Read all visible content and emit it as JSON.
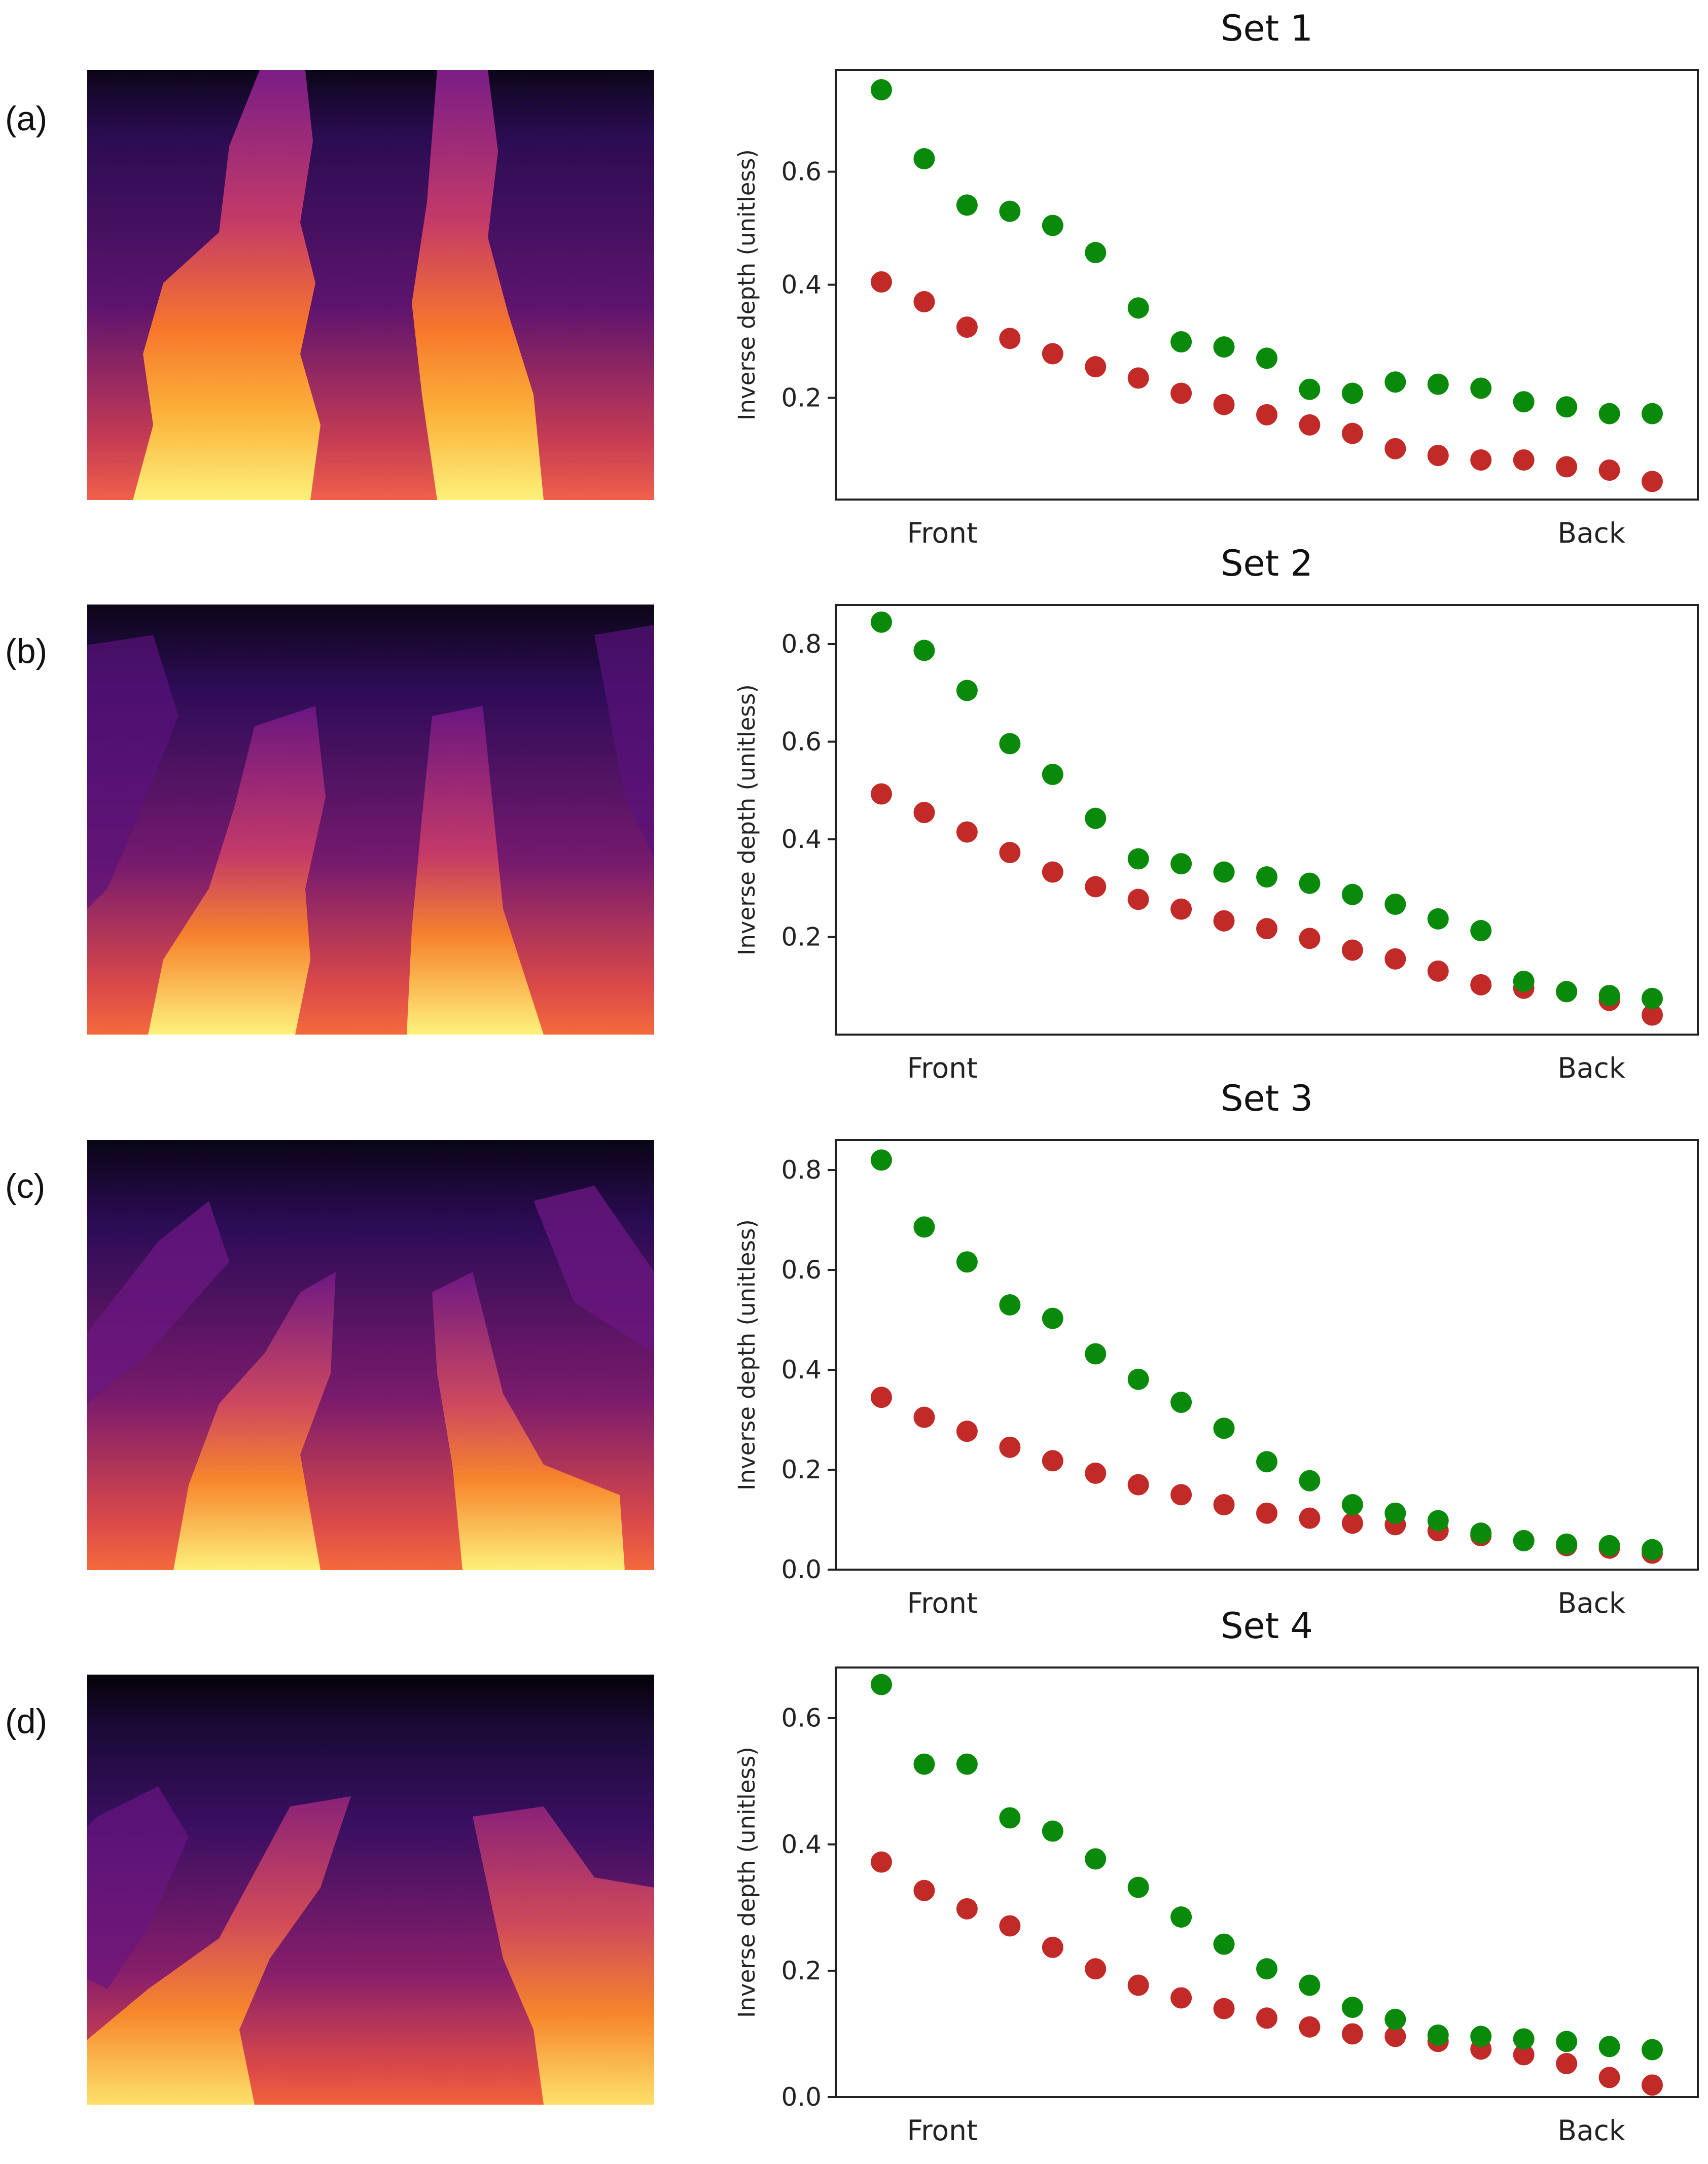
{
  "panel_labels": [
    "(a)",
    "(b)",
    "(c)",
    "(d)"
  ],
  "colors": {
    "green_series": "#0a8a0a",
    "red_series": "#c22a28"
  },
  "chart_data": [
    {
      "type": "scatter",
      "title": "Set 1",
      "ylabel": "Inverse depth (unitless)",
      "xlabel": "",
      "x_tick_labels": [
        "Front",
        "Back"
      ],
      "ylim": [
        0.02,
        0.78
      ],
      "yticks": [
        "0.2",
        "0.4",
        "0.6"
      ],
      "ytick_values": [
        0.2,
        0.4,
        0.6
      ],
      "x": [
        1,
        2,
        3,
        4,
        5,
        6,
        7,
        8,
        9,
        10,
        11,
        12,
        13,
        14,
        15,
        16,
        17,
        18,
        19
      ],
      "series": [
        {
          "name": "green",
          "values": [
            0.745,
            0.623,
            0.541,
            0.53,
            0.505,
            0.457,
            0.359,
            0.299,
            0.29,
            0.27,
            0.215,
            0.208,
            0.228,
            0.224,
            0.217,
            0.193,
            0.184,
            0.172,
            0.172
          ]
        },
        {
          "name": "red",
          "values": [
            0.405,
            0.37,
            0.325,
            0.305,
            0.278,
            0.255,
            0.235,
            0.208,
            0.188,
            0.17,
            0.152,
            0.137,
            0.11,
            0.098,
            0.09,
            0.09,
            0.078,
            0.072,
            0.052
          ]
        }
      ]
    },
    {
      "type": "scatter",
      "title": "Set 2",
      "ylabel": "Inverse depth (unitless)",
      "xlabel": "",
      "x_tick_labels": [
        "Front",
        "Back"
      ],
      "ylim": [
        0.0,
        0.88
      ],
      "yticks": [
        "0.2",
        "0.4",
        "0.6",
        "0.8"
      ],
      "ytick_values": [
        0.2,
        0.4,
        0.6,
        0.8
      ],
      "x": [
        1,
        2,
        3,
        4,
        5,
        6,
        7,
        8,
        9,
        10,
        11,
        12,
        13,
        14,
        15,
        16,
        17,
        18,
        19
      ],
      "series": [
        {
          "name": "green",
          "values": [
            0.845,
            0.787,
            0.705,
            0.596,
            0.533,
            0.443,
            0.36,
            0.35,
            0.333,
            0.323,
            0.31,
            0.287,
            0.267,
            0.237,
            0.213,
            0.109,
            0.088,
            0.08,
            0.074
          ]
        },
        {
          "name": "red",
          "values": [
            0.493,
            0.455,
            0.415,
            0.373,
            0.333,
            0.303,
            0.277,
            0.257,
            0.233,
            0.217,
            0.197,
            0.173,
            0.155,
            0.13,
            0.102,
            0.095,
            0.088,
            0.07,
            0.04
          ]
        }
      ]
    },
    {
      "type": "scatter",
      "title": "Set 3",
      "ylabel": "Inverse depth (unitless)",
      "xlabel": "",
      "x_tick_labels": [
        "Front",
        "Back"
      ],
      "ylim": [
        0.0,
        0.86
      ],
      "yticks": [
        "0.0",
        "0.2",
        "0.4",
        "0.6",
        "0.8"
      ],
      "ytick_values": [
        0.0,
        0.2,
        0.4,
        0.6,
        0.8
      ],
      "x": [
        1,
        2,
        3,
        4,
        5,
        6,
        7,
        8,
        9,
        10,
        11,
        12,
        13,
        14,
        15,
        16,
        17,
        18,
        19
      ],
      "series": [
        {
          "name": "green",
          "values": [
            0.82,
            0.686,
            0.616,
            0.53,
            0.503,
            0.432,
            0.381,
            0.335,
            0.283,
            0.216,
            0.178,
            0.13,
            0.113,
            0.098,
            0.073,
            0.058,
            0.051,
            0.048,
            0.04
          ]
        },
        {
          "name": "red",
          "values": [
            0.345,
            0.305,
            0.277,
            0.245,
            0.218,
            0.193,
            0.17,
            0.15,
            0.13,
            0.113,
            0.103,
            0.093,
            0.09,
            0.078,
            0.068,
            0.058,
            0.048,
            0.043,
            0.033
          ]
        }
      ]
    },
    {
      "type": "scatter",
      "title": "Set 4",
      "ylabel": "Inverse depth (unitless)",
      "xlabel": "",
      "x_tick_labels": [
        "Front",
        "Back"
      ],
      "ylim": [
        0.0,
        0.68
      ],
      "yticks": [
        "0.0",
        "0.2",
        "0.4",
        "0.6"
      ],
      "ytick_values": [
        0.0,
        0.2,
        0.4,
        0.6
      ],
      "x": [
        1,
        2,
        3,
        4,
        5,
        6,
        7,
        8,
        9,
        10,
        11,
        12,
        13,
        14,
        15,
        16,
        17,
        18,
        19
      ],
      "series": [
        {
          "name": "green",
          "values": [
            0.653,
            0.527,
            0.527,
            0.442,
            0.421,
            0.377,
            0.332,
            0.285,
            0.242,
            0.203,
            0.177,
            0.142,
            0.123,
            0.098,
            0.096,
            0.092,
            0.088,
            0.08,
            0.075
          ]
        },
        {
          "name": "red",
          "values": [
            0.372,
            0.327,
            0.298,
            0.271,
            0.237,
            0.203,
            0.177,
            0.157,
            0.14,
            0.125,
            0.111,
            0.1,
            0.096,
            0.088,
            0.076,
            0.067,
            0.053,
            0.031,
            0.019
          ]
        }
      ]
    }
  ]
}
